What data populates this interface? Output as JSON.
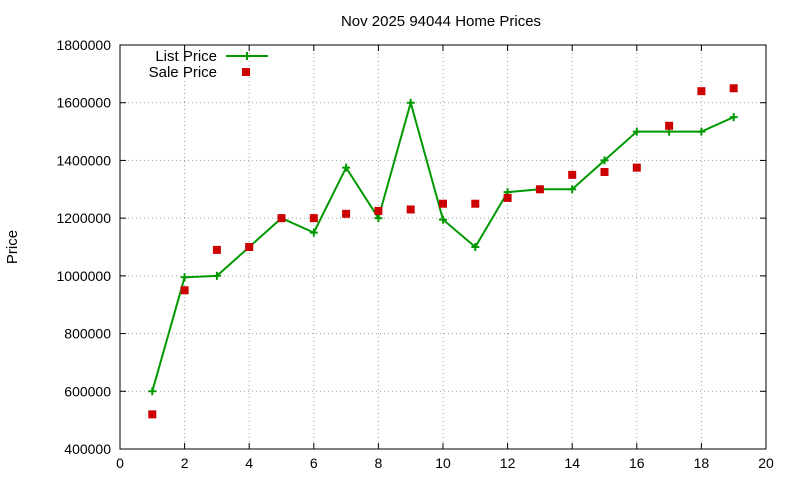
{
  "chart_data": {
    "type": "line",
    "title": "Nov 2025 94044 Home Prices",
    "xlabel": "",
    "ylabel": "Price",
    "xlim": [
      0,
      20
    ],
    "ylim": [
      400000,
      1800000
    ],
    "x_ticks": [
      0,
      2,
      4,
      6,
      8,
      10,
      12,
      14,
      16,
      18,
      20
    ],
    "y_ticks": [
      400000,
      600000,
      800000,
      1000000,
      1200000,
      1400000,
      1600000,
      1800000
    ],
    "grid": true,
    "legend_position": "top-left",
    "series": [
      {
        "name": "List Price",
        "style": "line-with-plus-markers",
        "color": "#009900",
        "x": [
          1,
          2,
          3,
          4,
          5,
          6,
          7,
          8,
          9,
          10,
          11,
          12,
          13,
          14,
          15,
          16,
          17,
          18,
          19
        ],
        "values": [
          600000,
          995000,
          1000000,
          1100000,
          1200000,
          1150000,
          1375000,
          1200000,
          1600000,
          1195000,
          1100000,
          1290000,
          1300000,
          1300000,
          1400000,
          1500000,
          1500000,
          1500000,
          1550000
        ]
      },
      {
        "name": "Sale Price",
        "style": "square-markers",
        "color": "#cc0000",
        "x": [
          1,
          2,
          3,
          4,
          5,
          6,
          7,
          8,
          9,
          10,
          11,
          12,
          13,
          14,
          15,
          16,
          17,
          18,
          19
        ],
        "values": [
          520000,
          950000,
          1090000,
          1100000,
          1200000,
          1200000,
          1215000,
          1225000,
          1230000,
          1250000,
          1250000,
          1270000,
          1300000,
          1350000,
          1360000,
          1375000,
          1520000,
          1640000,
          1650000
        ]
      }
    ]
  }
}
